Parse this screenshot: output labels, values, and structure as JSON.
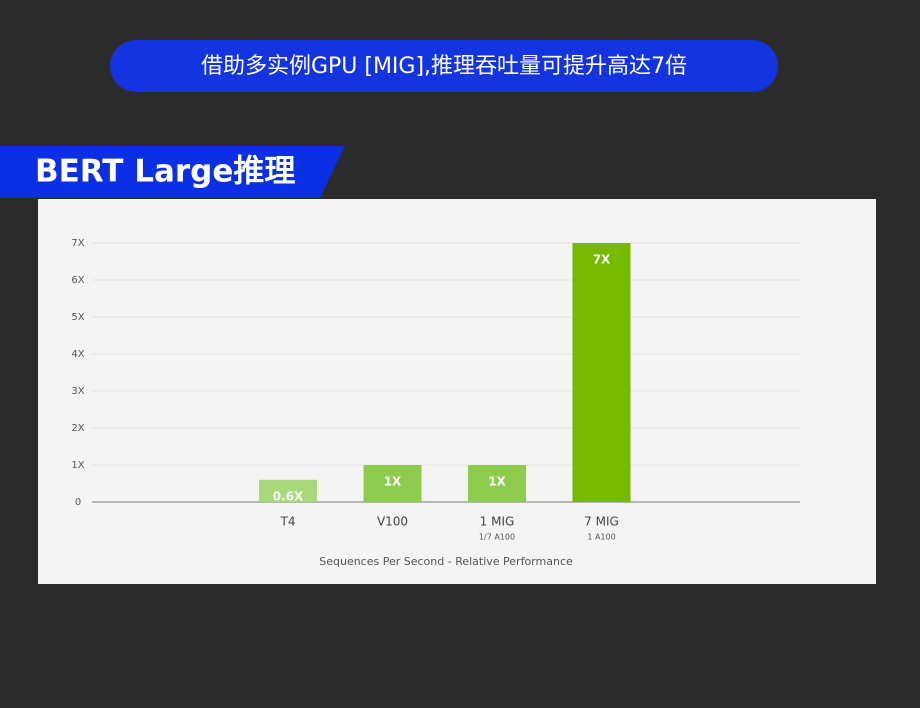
{
  "banner": "借助多实例GPU [MIG],推理吞吐量可提升高达7倍",
  "section_title": "BERT Large推理",
  "chart_data": {
    "type": "bar",
    "categories": [
      "T4",
      "V100",
      "1 MIG",
      "7 MIG"
    ],
    "sublabels": [
      null,
      null,
      "1/7 A100",
      "1 A100"
    ],
    "values": [
      0.6,
      1,
      1,
      7
    ],
    "value_labels": [
      "0.6X",
      "1X",
      "1X",
      "7X"
    ],
    "colors": [
      "#a9d87c",
      "#8dcc4e",
      "#8dcc4e",
      "#76b900"
    ],
    "xlabel": "Sequences Per Second - Relative Performance",
    "ylim": [
      0,
      7
    ],
    "yticks": [
      0,
      {
        "value": 1,
        "label": "1X"
      },
      {
        "value": 2,
        "label": "2X"
      },
      {
        "value": 3,
        "label": "3X"
      },
      {
        "value": 4,
        "label": "4X"
      },
      {
        "value": 5,
        "label": "5X"
      },
      {
        "value": 6,
        "label": "6X"
      },
      {
        "value": 7,
        "label": "7X"
      }
    ],
    "grid": true
  }
}
